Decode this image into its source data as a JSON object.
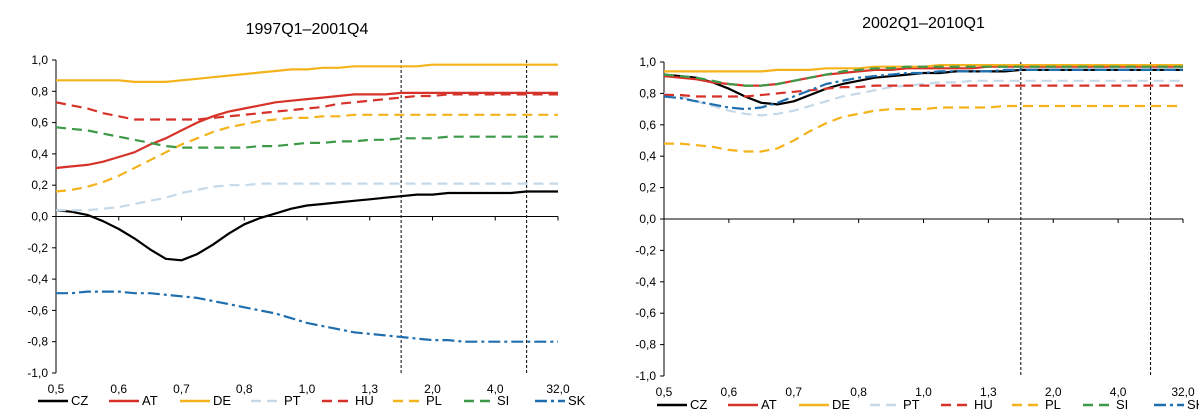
{
  "chart_data": [
    {
      "type": "line",
      "title": "1997Q1–2001Q4",
      "xlabel": "",
      "ylabel": "",
      "x_ticks": [
        "0,5",
        "0,6",
        "0,7",
        "0,8",
        "1,0",
        "1,3",
        "2,0",
        "4,0",
        "32,0"
      ],
      "y_ticks": [
        "1,0",
        "0,8",
        "0,6",
        "0,4",
        "0,2",
        "0,0",
        "-0,2",
        "-0,4",
        "-0,6",
        "-0,8",
        "-1,0"
      ],
      "ylim": [
        -1.0,
        1.0
      ],
      "x_positions": [
        0,
        0.25,
        0.5,
        0.75,
        1,
        1.25,
        1.5,
        1.75,
        2,
        2.25,
        2.5,
        2.75,
        3,
        3.25,
        3.5,
        3.75,
        4,
        4.25,
        4.5,
        4.75,
        5,
        5.25,
        5.5,
        5.75,
        6,
        6.25,
        6.5,
        6.75,
        7,
        7.25,
        7.5,
        7.75,
        8
      ],
      "reference_lines_x": [
        "1,3–2,0",
        "4,0–32,0"
      ],
      "legend_position": "bottom",
      "grid": false,
      "series": [
        {
          "name": "CZ",
          "color": "#000000",
          "dash": "solid",
          "values": [
            0.04,
            0.03,
            0.01,
            -0.03,
            -0.08,
            -0.14,
            -0.21,
            -0.27,
            -0.28,
            -0.24,
            -0.18,
            -0.11,
            -0.05,
            -0.01,
            0.02,
            0.05,
            0.07,
            0.08,
            0.09,
            0.1,
            0.11,
            0.12,
            0.13,
            0.14,
            0.14,
            0.15,
            0.15,
            0.15,
            0.15,
            0.15,
            0.16,
            0.16,
            0.16
          ]
        },
        {
          "name": "AT",
          "color": "#d7322a",
          "dash": "solid",
          "values": [
            0.31,
            0.32,
            0.33,
            0.35,
            0.38,
            0.41,
            0.46,
            0.5,
            0.55,
            0.6,
            0.64,
            0.67,
            0.69,
            0.71,
            0.73,
            0.74,
            0.75,
            0.76,
            0.77,
            0.78,
            0.78,
            0.78,
            0.79,
            0.79,
            0.79,
            0.79,
            0.79,
            0.79,
            0.79,
            0.79,
            0.79,
            0.79,
            0.79
          ]
        },
        {
          "name": "DE",
          "color": "#f5b31b",
          "dash": "solid",
          "values": [
            0.87,
            0.87,
            0.87,
            0.87,
            0.87,
            0.86,
            0.86,
            0.86,
            0.87,
            0.88,
            0.89,
            0.9,
            0.91,
            0.92,
            0.93,
            0.94,
            0.94,
            0.95,
            0.95,
            0.96,
            0.96,
            0.96,
            0.96,
            0.96,
            0.97,
            0.97,
            0.97,
            0.97,
            0.97,
            0.97,
            0.97,
            0.97,
            0.97
          ]
        },
        {
          "name": "PT",
          "color": "#c5d9e8",
          "dash": "dash",
          "values": [
            0.04,
            0.04,
            0.04,
            0.05,
            0.06,
            0.08,
            0.1,
            0.12,
            0.15,
            0.17,
            0.19,
            0.2,
            0.2,
            0.21,
            0.21,
            0.21,
            0.21,
            0.21,
            0.21,
            0.21,
            0.21,
            0.21,
            0.21,
            0.21,
            0.21,
            0.21,
            0.21,
            0.21,
            0.21,
            0.21,
            0.21,
            0.21,
            0.21
          ]
        },
        {
          "name": "HU",
          "color": "#d7322a",
          "dash": "dash",
          "values": [
            0.73,
            0.71,
            0.69,
            0.66,
            0.64,
            0.62,
            0.62,
            0.62,
            0.62,
            0.62,
            0.63,
            0.64,
            0.65,
            0.66,
            0.67,
            0.68,
            0.69,
            0.7,
            0.72,
            0.73,
            0.74,
            0.75,
            0.76,
            0.77,
            0.77,
            0.78,
            0.78,
            0.78,
            0.78,
            0.78,
            0.78,
            0.78,
            0.78
          ]
        },
        {
          "name": "PL",
          "color": "#f5b31b",
          "dash": "dash",
          "values": [
            0.16,
            0.17,
            0.19,
            0.22,
            0.26,
            0.31,
            0.36,
            0.41,
            0.46,
            0.5,
            0.54,
            0.57,
            0.59,
            0.61,
            0.62,
            0.63,
            0.63,
            0.64,
            0.64,
            0.65,
            0.65,
            0.65,
            0.65,
            0.65,
            0.65,
            0.65,
            0.65,
            0.65,
            0.65,
            0.65,
            0.65,
            0.65,
            0.65
          ]
        },
        {
          "name": "SI",
          "color": "#3c9a48",
          "dash": "dash",
          "values": [
            0.57,
            0.56,
            0.55,
            0.53,
            0.51,
            0.49,
            0.47,
            0.45,
            0.44,
            0.44,
            0.44,
            0.44,
            0.44,
            0.45,
            0.45,
            0.46,
            0.47,
            0.47,
            0.48,
            0.48,
            0.49,
            0.49,
            0.5,
            0.5,
            0.5,
            0.51,
            0.51,
            0.51,
            0.51,
            0.51,
            0.51,
            0.51,
            0.51
          ]
        },
        {
          "name": "SK",
          "color": "#1f6fb0",
          "dash": "dashdot",
          "values": [
            -0.49,
            -0.49,
            -0.48,
            -0.48,
            -0.48,
            -0.49,
            -0.49,
            -0.5,
            -0.51,
            -0.52,
            -0.54,
            -0.56,
            -0.58,
            -0.6,
            -0.62,
            -0.65,
            -0.68,
            -0.7,
            -0.72,
            -0.74,
            -0.75,
            -0.76,
            -0.77,
            -0.78,
            -0.79,
            -0.79,
            -0.8,
            -0.8,
            -0.8,
            -0.8,
            -0.8,
            -0.8,
            -0.8
          ]
        }
      ]
    },
    {
      "type": "line",
      "title": "2002Q1–2010Q1",
      "xlabel": "",
      "ylabel": "",
      "x_ticks": [
        "0,5",
        "0,6",
        "0,7",
        "0,8",
        "1,0",
        "1,3",
        "2,0",
        "4,0",
        "32,0"
      ],
      "y_ticks": [
        "1,0",
        "0,8",
        "0,6",
        "0,4",
        "0,2",
        "0,0",
        "-0,2",
        "-0,4",
        "-0,6",
        "-0,8",
        "-1,0"
      ],
      "ylim": [
        -1.0,
        1.0
      ],
      "x_positions": [
        0,
        0.25,
        0.5,
        0.75,
        1,
        1.25,
        1.5,
        1.75,
        2,
        2.25,
        2.5,
        2.75,
        3,
        3.25,
        3.5,
        3.75,
        4,
        4.25,
        4.5,
        4.75,
        5,
        5.25,
        5.5,
        5.75,
        6,
        6.25,
        6.5,
        6.75,
        7,
        7.25,
        7.5,
        7.75,
        8
      ],
      "reference_lines_x": [
        "1,3–2,0",
        "4,0–32,0"
      ],
      "legend_position": "bottom",
      "grid": false,
      "series": [
        {
          "name": "CZ",
          "color": "#000000",
          "dash": "solid",
          "values": [
            0.92,
            0.91,
            0.9,
            0.87,
            0.83,
            0.78,
            0.74,
            0.73,
            0.75,
            0.79,
            0.83,
            0.86,
            0.88,
            0.9,
            0.91,
            0.92,
            0.93,
            0.93,
            0.94,
            0.94,
            0.94,
            0.94,
            0.95,
            0.95,
            0.95,
            0.95,
            0.95,
            0.95,
            0.95,
            0.95,
            0.95,
            0.95,
            0.95
          ]
        },
        {
          "name": "AT",
          "color": "#d7322a",
          "dash": "solid",
          "values": [
            0.91,
            0.9,
            0.89,
            0.87,
            0.86,
            0.85,
            0.85,
            0.86,
            0.88,
            0.9,
            0.92,
            0.93,
            0.94,
            0.95,
            0.95,
            0.96,
            0.96,
            0.96,
            0.96,
            0.96,
            0.97,
            0.97,
            0.97,
            0.97,
            0.97,
            0.97,
            0.97,
            0.97,
            0.97,
            0.97,
            0.97,
            0.97,
            0.97
          ]
        },
        {
          "name": "DE",
          "color": "#f5b31b",
          "dash": "solid",
          "values": [
            0.94,
            0.94,
            0.94,
            0.94,
            0.94,
            0.94,
            0.94,
            0.95,
            0.95,
            0.95,
            0.96,
            0.96,
            0.96,
            0.97,
            0.97,
            0.97,
            0.97,
            0.98,
            0.98,
            0.98,
            0.98,
            0.98,
            0.98,
            0.98,
            0.98,
            0.98,
            0.98,
            0.98,
            0.98,
            0.98,
            0.98,
            0.98,
            0.98
          ]
        },
        {
          "name": "PT",
          "color": "#c5d9e8",
          "dash": "dash",
          "values": [
            0.8,
            0.78,
            0.75,
            0.72,
            0.69,
            0.67,
            0.66,
            0.67,
            0.69,
            0.72,
            0.75,
            0.78,
            0.8,
            0.82,
            0.84,
            0.85,
            0.86,
            0.87,
            0.87,
            0.88,
            0.88,
            0.88,
            0.88,
            0.88,
            0.88,
            0.88,
            0.88,
            0.88,
            0.88,
            0.88,
            0.88,
            0.88,
            0.88
          ]
        },
        {
          "name": "HU",
          "color": "#d7322a",
          "dash": "dash",
          "values": [
            0.79,
            0.79,
            0.78,
            0.78,
            0.78,
            0.78,
            0.79,
            0.8,
            0.81,
            0.82,
            0.83,
            0.84,
            0.84,
            0.85,
            0.85,
            0.85,
            0.85,
            0.85,
            0.85,
            0.85,
            0.85,
            0.85,
            0.85,
            0.85,
            0.85,
            0.85,
            0.85,
            0.85,
            0.85,
            0.85,
            0.85,
            0.85,
            0.85
          ]
        },
        {
          "name": "PL",
          "color": "#f5b31b",
          "dash": "dash",
          "values": [
            0.48,
            0.48,
            0.47,
            0.46,
            0.44,
            0.43,
            0.43,
            0.45,
            0.5,
            0.56,
            0.61,
            0.65,
            0.67,
            0.69,
            0.7,
            0.7,
            0.7,
            0.71,
            0.71,
            0.71,
            0.71,
            0.72,
            0.72,
            0.72,
            0.72,
            0.72,
            0.72,
            0.72,
            0.72,
            0.72,
            0.72,
            0.72,
            0.72
          ]
        },
        {
          "name": "SI",
          "color": "#3c9a48",
          "dash": "dash",
          "values": [
            0.92,
            0.91,
            0.9,
            0.88,
            0.86,
            0.85,
            0.85,
            0.86,
            0.88,
            0.9,
            0.92,
            0.94,
            0.95,
            0.96,
            0.96,
            0.97,
            0.97,
            0.97,
            0.97,
            0.97,
            0.97,
            0.97,
            0.97,
            0.97,
            0.97,
            0.97,
            0.97,
            0.97,
            0.97,
            0.97,
            0.97,
            0.97,
            0.97
          ]
        },
        {
          "name": "SK",
          "color": "#1f6fb0",
          "dash": "dashdot",
          "values": [
            0.78,
            0.77,
            0.75,
            0.73,
            0.71,
            0.7,
            0.71,
            0.74,
            0.78,
            0.82,
            0.86,
            0.88,
            0.9,
            0.91,
            0.92,
            0.93,
            0.93,
            0.94,
            0.94,
            0.94,
            0.94,
            0.95,
            0.95,
            0.95,
            0.95,
            0.95,
            0.95,
            0.95,
            0.95,
            0.95,
            0.95,
            0.95,
            0.95
          ]
        }
      ]
    }
  ]
}
